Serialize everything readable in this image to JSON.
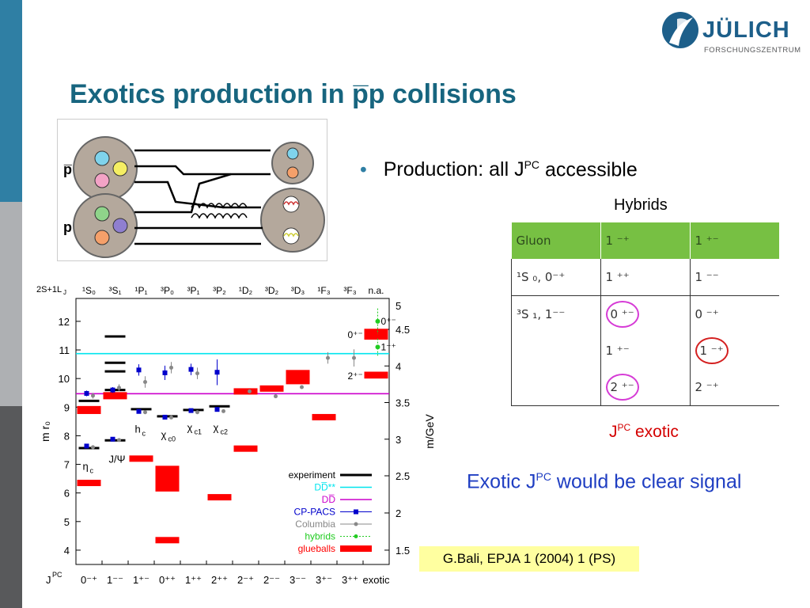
{
  "header": {
    "title": "Exotics production in p̅p collisions",
    "logo_main": "JÜLICH",
    "logo_sub": "FORSCHUNGSZENTRUM"
  },
  "diagram": {
    "label_pbar": "p̅",
    "label_p": "p"
  },
  "bullet": {
    "marker": "•",
    "text_before": "Production:   all J",
    "sup": "PC",
    "text_after": " accessible"
  },
  "hybrids_table": {
    "title": "Hybrids",
    "headers": [
      "Gluon",
      "1 ⁻⁺",
      "1 ⁺⁻"
    ],
    "rows": [
      [
        "¹S ₀, 0⁻⁺",
        "1 ⁺⁺",
        "1 ⁻⁻"
      ],
      [
        "³S ₁, 1⁻⁻",
        "0 ⁺⁻",
        "0 ⁻⁺"
      ],
      [
        "",
        "1 ⁺⁻",
        "1 ⁻⁺"
      ],
      [
        "",
        "2 ⁺⁻",
        "2 ⁻⁺"
      ]
    ],
    "circled_magenta": [
      "0 ⁺⁻",
      "2 ⁺⁻"
    ],
    "circled_red": [
      "1 ⁻⁺"
    ]
  },
  "exotic_label": {
    "j": "J",
    "sup": "PC",
    "text": " exotic"
  },
  "signal": {
    "before": "Exotic J",
    "sup": "PC",
    "after": " would be clear signal"
  },
  "citation": "G.Bali, EPJA 1 (2004) 1 (PS)",
  "colors": {
    "title": "#17657f",
    "experiment": "#000000",
    "dd_cyan": "#00e5ee",
    "dd_magenta": "#cc00cc",
    "cp_pacs": "#0000cc",
    "columbia": "#888888",
    "hybrids": "#22cc22",
    "glueballs": "#ff0000"
  },
  "chart_data": {
    "type": "scatter",
    "top_row_label": "2S+1L",
    "top_row_label_sub": "J",
    "top_labels": [
      "¹S₀",
      "³S₁",
      "¹P₁",
      "³P₀",
      "³P₁",
      "³P₂",
      "¹D₂",
      "³D₂",
      "³D₃",
      "¹F₃",
      "³F₃",
      "n.a."
    ],
    "bottom_row_label": "J",
    "bottom_row_label_sup": "PC",
    "categories": [
      "0⁻⁺",
      "1⁻⁻",
      "1⁺⁻",
      "0⁺⁺",
      "1⁺⁺",
      "2⁺⁺",
      "2⁻⁺",
      "2⁻⁻",
      "3⁻⁻",
      "3⁺⁻",
      "3⁺⁺",
      "exotic"
    ],
    "ylabel_left": "m r₀",
    "ylabel_right": "m/GeV",
    "ylim_left": [
      3.5,
      12.8
    ],
    "yticks_left": [
      4,
      5,
      6,
      7,
      8,
      9,
      10,
      11,
      12
    ],
    "yticks_right": [
      {
        "label": "1.5",
        "r0": 4.0
      },
      {
        "label": "2",
        "r0": 5.3
      },
      {
        "label": "2.5",
        "r0": 6.6
      },
      {
        "label": "3",
        "r0": 7.88
      },
      {
        "label": "3.5",
        "r0": 9.16
      },
      {
        "label": "4",
        "r0": 10.44
      },
      {
        "label": "4.5",
        "r0": 11.72
      },
      {
        "label": "5",
        "r0": 13.0
      }
    ],
    "thresholds": [
      {
        "name": "DD̅**",
        "value": 10.87,
        "color": "#00e5ee"
      },
      {
        "name": "DD̅",
        "value": 9.47,
        "color": "#cc00cc"
      }
    ],
    "experiment": [
      {
        "x": 0,
        "y": 7.57
      },
      {
        "x": 0,
        "y": 9.22
      },
      {
        "x": 1,
        "y": 7.84
      },
      {
        "x": 1,
        "y": 9.6
      },
      {
        "x": 1,
        "y": 10.25
      },
      {
        "x": 1,
        "y": 10.55
      },
      {
        "x": 1,
        "y": 11.47
      },
      {
        "x": 2,
        "y": 8.93
      },
      {
        "x": 3,
        "y": 8.68
      },
      {
        "x": 4,
        "y": 8.9
      },
      {
        "x": 5,
        "y": 9.03
      }
    ],
    "cp_pacs": [
      {
        "x": 0,
        "y": 7.64,
        "err": 0.05
      },
      {
        "x": 0,
        "y": 9.48,
        "err": 0.1
      },
      {
        "x": 1,
        "y": 7.88,
        "err": 0.04
      },
      {
        "x": 1,
        "y": 9.6,
        "err": 0.1
      },
      {
        "x": 2,
        "y": 8.85,
        "err": 0.05
      },
      {
        "x": 2,
        "y": 10.3,
        "err": 0.2
      },
      {
        "x": 3,
        "y": 8.65,
        "err": 0.05
      },
      {
        "x": 3,
        "y": 10.2,
        "err": 0.25
      },
      {
        "x": 4,
        "y": 8.88,
        "err": 0.05
      },
      {
        "x": 4,
        "y": 10.32,
        "err": 0.2
      },
      {
        "x": 5,
        "y": 8.92,
        "err": 0.05
      },
      {
        "x": 5,
        "y": 10.22,
        "err": 0.45
      }
    ],
    "columbia": [
      {
        "x": 0,
        "y": 7.6,
        "err": 0.05
      },
      {
        "x": 0,
        "y": 9.4,
        "err": 0.1
      },
      {
        "x": 1,
        "y": 7.85,
        "err": 0.05
      },
      {
        "x": 1,
        "y": 9.68,
        "err": 0.12
      },
      {
        "x": 2,
        "y": 8.82,
        "err": 0.05
      },
      {
        "x": 2,
        "y": 9.88,
        "err": 0.2
      },
      {
        "x": 3,
        "y": 8.64,
        "err": 0.05
      },
      {
        "x": 3,
        "y": 10.38,
        "err": 0.2
      },
      {
        "x": 4,
        "y": 8.82,
        "err": 0.05
      },
      {
        "x": 4,
        "y": 10.18,
        "err": 0.2
      },
      {
        "x": 5,
        "y": 8.86,
        "err": 0.05
      },
      {
        "x": 6,
        "y": 9.55,
        "err": 0.05
      },
      {
        "x": 7,
        "y": 9.38,
        "err": 0.05
      },
      {
        "x": 8,
        "y": 9.7,
        "err": 0.05
      },
      {
        "x": 9,
        "y": 10.72,
        "err": 0.2
      },
      {
        "x": 10,
        "y": 10.72,
        "err": 0.3
      }
    ],
    "hybrids": [
      {
        "x": 11,
        "y": 12.0,
        "err": 0.45,
        "label": "0⁺⁻"
      },
      {
        "x": 11,
        "y": 11.1,
        "err": 0.3,
        "label": "1⁻⁺"
      }
    ],
    "glueballs": [
      {
        "x": 0,
        "y": 6.35,
        "h": 0.2
      },
      {
        "x": 0,
        "y": 8.9,
        "h": 0.28
      },
      {
        "x": 1,
        "y": 9.4,
        "h": 0.25
      },
      {
        "x": 2,
        "y": 7.2,
        "h": 0.16
      },
      {
        "x": 3,
        "y": 4.35,
        "h": 0.15
      },
      {
        "x": 3,
        "y": 6.5,
        "h": 0.9
      },
      {
        "x": 5,
        "y": 5.85,
        "h": 0.16
      },
      {
        "x": 6,
        "y": 7.55,
        "h": 0.18
      },
      {
        "x": 6,
        "y": 9.55,
        "h": 0.2
      },
      {
        "x": 7,
        "y": 9.65,
        "h": 0.22
      },
      {
        "x": 8,
        "y": 10.05,
        "h": 0.5
      },
      {
        "x": 9,
        "y": 8.65,
        "h": 0.2
      },
      {
        "x": 11,
        "y": 11.55,
        "h": 0.38,
        "label": "0⁺⁻"
      },
      {
        "x": 11,
        "y": 10.12,
        "h": 0.24,
        "label": "2⁺⁻"
      }
    ],
    "state_labels": [
      {
        "text": "η",
        "sub": "c",
        "x": 0,
        "y": 7.2
      },
      {
        "text": "J/Ψ",
        "sub": "",
        "x": 1,
        "y": 7.45
      },
      {
        "text": "h",
        "sub": "c",
        "x": 2,
        "y": 8.5
      },
      {
        "text": "χ",
        "sub": "c0",
        "x": 3,
        "y": 8.3
      },
      {
        "text": "χ",
        "sub": "c1",
        "x": 4,
        "y": 8.55
      },
      {
        "text": "χ",
        "sub": "c2",
        "x": 5,
        "y": 8.55
      }
    ],
    "legend": {
      "placement": "bottom-right",
      "entries": [
        {
          "name": "experiment",
          "color": "#000000"
        },
        {
          "name": "DD̅**",
          "color": "#00e5ee"
        },
        {
          "name": "DD̅",
          "color": "#cc00cc"
        },
        {
          "name": "CP-PACS",
          "color": "#0000cc"
        },
        {
          "name": "Columbia",
          "color": "#888888"
        },
        {
          "name": "hybrids",
          "color": "#22cc22"
        },
        {
          "name": "glueballs",
          "color": "#ff0000"
        }
      ]
    }
  }
}
